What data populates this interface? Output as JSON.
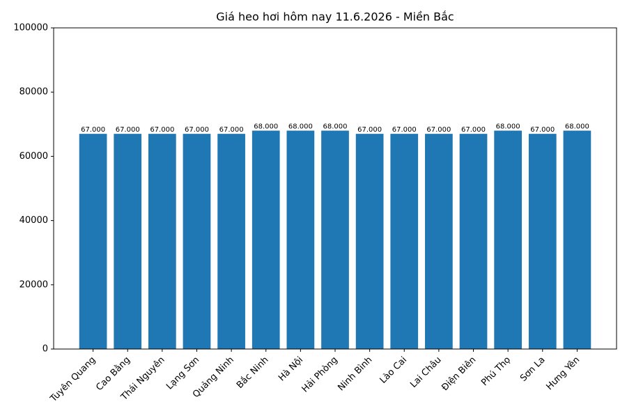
{
  "chart_data": {
    "type": "bar",
    "title": "Giá heo hơi hôm nay 11.6.2026 - Miền Bắc",
    "categories": [
      "Tuyên Quang",
      "Cao Bằng",
      "Thái Nguyên",
      "Lạng Sơn",
      "Quảng Ninh",
      "Bắc Ninh",
      "Hà Nội",
      "Hải Phòng",
      "Ninh Bình",
      "Lào Cai",
      "Lai Châu",
      "Điện Biên",
      "Phú Thọ",
      "Sơn La",
      "Hưng Yên"
    ],
    "values": [
      67000,
      67000,
      67000,
      67000,
      67000,
      68000,
      68000,
      68000,
      67000,
      67000,
      67000,
      67000,
      68000,
      67000,
      68000
    ],
    "value_labels": [
      "67.000",
      "67.000",
      "67.000",
      "67.000",
      "67.000",
      "68.000",
      "68.000",
      "68.000",
      "67.000",
      "67.000",
      "67.000",
      "67.000",
      "68.000",
      "67.000",
      "68.000"
    ],
    "color": "#1f77b4",
    "ylim": [
      0,
      100000
    ],
    "yticks": [
      0,
      20000,
      40000,
      60000,
      80000,
      100000
    ],
    "grid": false
  }
}
